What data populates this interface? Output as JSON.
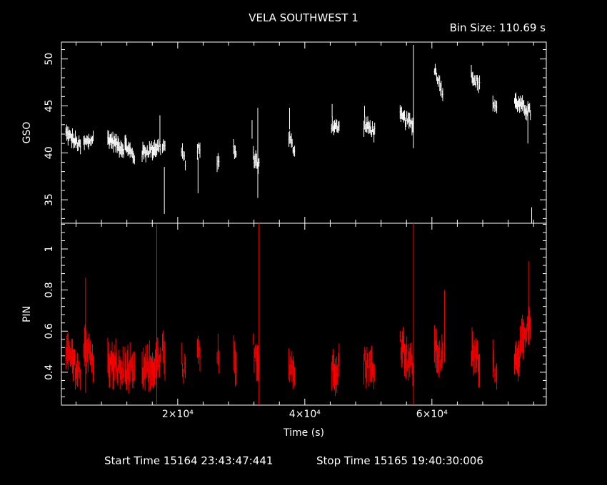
{
  "title": "VELA SOUTHWEST 1",
  "bin_size_label": "Bin Size: 110.69 s",
  "footer": {
    "start_time": "Start Time 15164 23:43:47:441",
    "stop_time": "Stop Time 15165 19:40:30:006"
  },
  "colors": {
    "background": "#000000",
    "axes": "#ffffff",
    "gso_series": "#ffffff",
    "pin_series": "#ff0000"
  },
  "chart_data": [
    {
      "type": "scatter",
      "panel": "top",
      "ylabel": "GSO",
      "xlabel": "",
      "xlim": [
        1700,
        78000
      ],
      "ylim": [
        32.5,
        51.8
      ],
      "xticks": [
        20000,
        40000,
        60000
      ],
      "yticks": [
        35,
        40,
        45,
        50
      ],
      "ytick_labels": [
        "35",
        "40",
        "45",
        "50"
      ],
      "error_bars": true,
      "series": [
        {
          "color": "#ffffff",
          "segments": [
            {
              "x": [
                2400,
                4700
              ],
              "y": [
                42.1,
                40.7
              ]
            },
            {
              "x": [
                5200,
                6700
              ],
              "y": [
                41.0,
                41.5
              ]
            },
            {
              "x": [
                9000,
                11500
              ],
              "y": [
                41.6,
                40.4
              ]
            },
            {
              "x": [
                11700,
                13200
              ],
              "y": [
                40.9,
                39.5
              ]
            },
            {
              "x": [
                14400,
                17300
              ],
              "y": [
                40.0,
                40.7
              ]
            },
            {
              "x": [
                17600,
                18000
              ],
              "y": [
                40.5,
                40.8
              ]
            },
            {
              "x": [
                20600,
                21200
              ],
              "y": [
                40.0,
                39.1
              ]
            },
            {
              "x": [
                23100,
                23500
              ],
              "y": [
                40.2,
                40.6
              ]
            },
            {
              "x": [
                26200,
                26500
              ],
              "y": [
                39.0,
                38.8
              ]
            },
            {
              "x": [
                28800,
                29200
              ],
              "y": [
                40.5,
                39.8
              ]
            },
            {
              "x": [
                31900,
                32800
              ],
              "y": [
                39.6,
                38.7
              ]
            },
            {
              "x": [
                37500,
                38400
              ],
              "y": [
                41.6,
                40.2
              ]
            },
            {
              "x": [
                44200,
                45400
              ],
              "y": [
                43.0,
                42.6
              ]
            },
            {
              "x": [
                49300,
                51000
              ],
              "y": [
                43.0,
                42.3
              ]
            },
            {
              "x": [
                55000,
                57100
              ],
              "y": [
                43.9,
                43.0
              ]
            },
            {
              "x": [
                60400,
                61700
              ],
              "y": [
                49.0,
                46.5
              ]
            },
            {
              "x": [
                66200,
                67500
              ],
              "y": [
                48.4,
                47.1
              ]
            },
            {
              "x": [
                69600,
                70200
              ],
              "y": [
                45.4,
                44.9
              ]
            },
            {
              "x": [
                73000,
                75500
              ],
              "y": [
                45.5,
                44.3
              ]
            }
          ],
          "spikes": [
            {
              "x": 17200,
              "low": 41.0,
              "high": 44.0
            },
            {
              "x": 17900,
              "low": 33.5,
              "high": 38.5
            },
            {
              "x": 23200,
              "low": 35.7,
              "high": 39.5
            },
            {
              "x": 31700,
              "low": 41.5,
              "high": 43.5
            },
            {
              "x": 32600,
              "low": 35.2,
              "high": 44.8
            },
            {
              "x": 37600,
              "low": 42.5,
              "high": 44.8
            },
            {
              "x": 44300,
              "low": 43.8,
              "high": 45.2
            },
            {
              "x": 49400,
              "low": 43.8,
              "high": 45.0
            },
            {
              "x": 57100,
              "low": 40.5,
              "high": 51.5
            },
            {
              "x": 75700,
              "low": 32.5,
              "high": 34.2
            },
            {
              "x": 75100,
              "low": 41.0,
              "high": 45.5
            }
          ]
        }
      ]
    },
    {
      "type": "scatter",
      "panel": "bottom",
      "ylabel": "PIN",
      "xlabel": "Time (s)",
      "xlim": [
        1700,
        78000
      ],
      "ylim": [
        0.24,
        1.125
      ],
      "xticks": [
        20000,
        40000,
        60000
      ],
      "xtick_labels": [
        "2×10⁴",
        "4×10⁴",
        "6×10⁴"
      ],
      "yticks": [
        0.4,
        0.6,
        0.8,
        1.0
      ],
      "ytick_labels": [
        "0.4",
        "0.6",
        "0.8",
        "1"
      ],
      "error_bars": true,
      "series": [
        {
          "color": "#ff0000",
          "segments": [
            {
              "x": [
                2400,
                4700
              ],
              "y": [
                0.5,
                0.38
              ]
            },
            {
              "x": [
                5200,
                6700
              ],
              "y": [
                0.55,
                0.45
              ]
            },
            {
              "x": [
                9000,
                11500
              ],
              "y": [
                0.45,
                0.4
              ]
            },
            {
              "x": [
                11700,
                13200
              ],
              "y": [
                0.42,
                0.38
              ]
            },
            {
              "x": [
                14400,
                17300
              ],
              "y": [
                0.4,
                0.45
              ]
            },
            {
              "x": [
                17600,
                18000
              ],
              "y": [
                0.5,
                0.45
              ]
            },
            {
              "x": [
                20600,
                21200
              ],
              "y": [
                0.45,
                0.4
              ]
            },
            {
              "x": [
                23100,
                23500
              ],
              "y": [
                0.5,
                0.45
              ]
            },
            {
              "x": [
                26200,
                26500
              ],
              "y": [
                0.5,
                0.42
              ]
            },
            {
              "x": [
                28800,
                29200
              ],
              "y": [
                0.45,
                0.4
              ]
            },
            {
              "x": [
                31900,
                32800
              ],
              "y": [
                0.52,
                0.45
              ]
            },
            {
              "x": [
                37500,
                38400
              ],
              "y": [
                0.45,
                0.4
              ]
            },
            {
              "x": [
                44200,
                45400
              ],
              "y": [
                0.4,
                0.45
              ]
            },
            {
              "x": [
                49300,
                51000
              ],
              "y": [
                0.45,
                0.4
              ]
            },
            {
              "x": [
                55000,
                57100
              ],
              "y": [
                0.55,
                0.42
              ]
            },
            {
              "x": [
                60400,
                61700
              ],
              "y": [
                0.52,
                0.45
              ]
            },
            {
              "x": [
                66200,
                67500
              ],
              "y": [
                0.5,
                0.45
              ]
            },
            {
              "x": [
                69600,
                70200
              ],
              "y": [
                0.45,
                0.42
              ]
            },
            {
              "x": [
                73000,
                75500
              ],
              "y": [
                0.45,
                0.62
              ]
            }
          ],
          "spikes": [
            {
              "x": 5500,
              "low": 0.3,
              "high": 0.86
            },
            {
              "x": 16700,
              "low": 0.24,
              "high": 1.12
            },
            {
              "x": 32800,
              "low": 0.24,
              "high": 1.125
            },
            {
              "x": 57100,
              "low": 0.24,
              "high": 1.125
            },
            {
              "x": 62000,
              "low": 0.45,
              "high": 0.8
            },
            {
              "x": 75200,
              "low": 0.55,
              "high": 0.94
            }
          ]
        }
      ]
    }
  ]
}
